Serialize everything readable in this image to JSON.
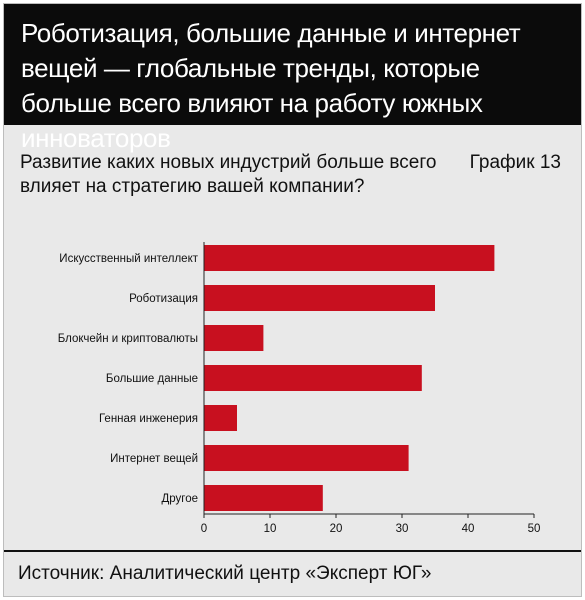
{
  "header": {
    "title": "Роботизация, большие данные и интернет вещей — глобальные тренды, которые больше всего влияют на работу южных инноваторов"
  },
  "subtitle": "Развитие каких новых индустрий больше всего влияет на стратегию вашей компании?",
  "graph_label": "График 13",
  "source": "Источник: Аналитический центр «Эксперт ЮГ»",
  "colors": {
    "bar": "#c8101f",
    "background": "#e9e9e9",
    "header_bg": "#0b0b0b"
  },
  "chart_data": {
    "type": "bar",
    "orientation": "horizontal",
    "categories": [
      "Искусственный интеллект",
      "Роботизация",
      "Блокчейн и криптовалюты",
      "Большие данные",
      "Генная инженерия",
      "Интернет вещей",
      "Другое"
    ],
    "values": [
      44,
      35,
      9,
      33,
      5,
      31,
      18
    ],
    "xlim": [
      0,
      50
    ],
    "xticks": [
      0,
      10,
      20,
      30,
      40,
      50
    ],
    "grid": false,
    "legend": false
  }
}
